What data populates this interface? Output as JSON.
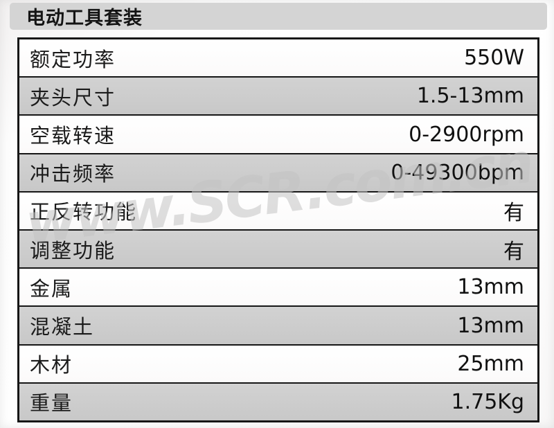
{
  "page": {
    "title": "电动工具套装",
    "watermark": "www.SCR.com.cn"
  },
  "colors": {
    "header_bar_bg": "#d4d4d4",
    "row_bg": "#fdfdfd",
    "row_alt_bg": "#cbcbcb",
    "table_border": "#161616",
    "text": "#1b1b1b",
    "watermark": "#c3c3c3"
  },
  "spec_table": {
    "rows": [
      {
        "label": "额定功率",
        "value": "550W"
      },
      {
        "label": "夹头尺寸",
        "value": "1.5-13mm"
      },
      {
        "label": "空载转速",
        "value": "0-2900rpm"
      },
      {
        "label": "冲击频率",
        "value": "0-49300bpm"
      },
      {
        "label": "正反转功能",
        "value": "有"
      },
      {
        "label": "调整功能",
        "value": "有"
      },
      {
        "label": "金属",
        "value": "13mm"
      },
      {
        "label": "混凝土",
        "value": "13mm"
      },
      {
        "label": "木材",
        "value": "25mm"
      },
      {
        "label": "重量",
        "value": "1.75Kg"
      }
    ]
  }
}
